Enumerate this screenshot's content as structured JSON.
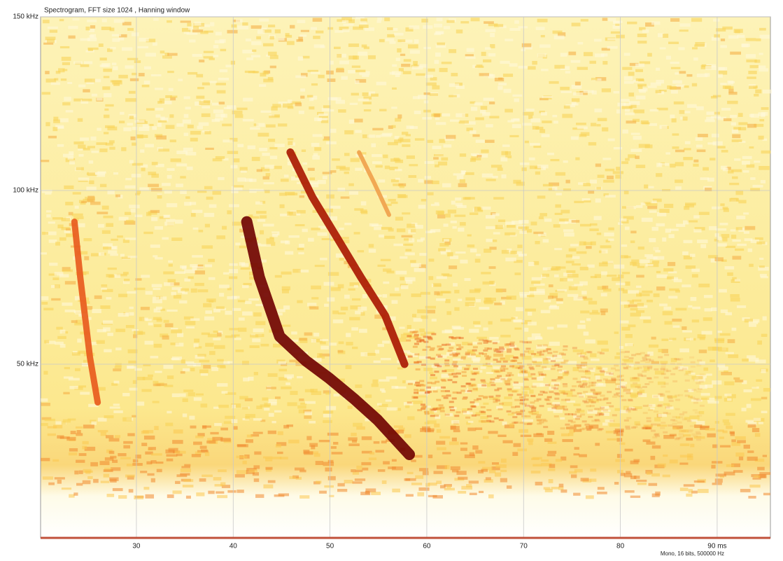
{
  "chart_data": {
    "type": "spectrogram",
    "title": "Spectrogram, FFT size 1024 , Hanning window",
    "footer": "Mono, 16 bits, 500000 Hz",
    "xlim": [
      20.1,
      95.5
    ],
    "ylim": [
      0,
      150
    ],
    "xticks": [
      30,
      40,
      50,
      60,
      70,
      80,
      {
        "value": 90,
        "label": "90 ms"
      }
    ],
    "yticks": [
      {
        "value": 50,
        "label": "50 kHz"
      },
      {
        "value": 100,
        "label": "100 kHz"
      },
      {
        "value": 150,
        "label": "150 kHz"
      }
    ],
    "grid": true,
    "series": [
      {
        "color": "#e8591c",
        "x": [
          23.6,
          24.2,
          25.2,
          26.0
        ],
        "values": [
          91,
          75,
          52,
          39
        ]
      },
      {
        "color": "#6e0000",
        "x": [
          41.4,
          42.7,
          44.8,
          47.5,
          49.9,
          52.5,
          54.9,
          58.2
        ],
        "values": [
          91,
          75,
          58,
          51,
          46,
          40,
          34,
          24
        ]
      },
      {
        "color": "#a81500",
        "x": [
          45.9,
          48.2,
          50.6,
          53.2,
          55.7,
          57.7
        ],
        "values": [
          111,
          98,
          87,
          75,
          64,
          50
        ]
      },
      {
        "color": "#f0a04a",
        "x": [
          53.0,
          54.6,
          56.1
        ],
        "values": [
          111,
          102,
          93
        ]
      }
    ]
  }
}
